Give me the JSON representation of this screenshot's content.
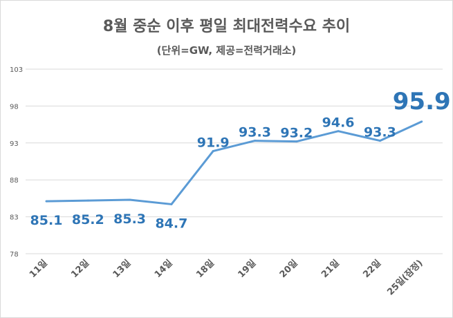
{
  "chart_data": {
    "type": "line",
    "title": "8월 중순 이후 평일 최대전력수요 추이",
    "subtitle": "(단위=GW, 제공=전력거래소)",
    "categories": [
      "11일",
      "12일",
      "13일",
      "14일",
      "18일",
      "19일",
      "20일",
      "21일",
      "22일",
      "25일(잠정)"
    ],
    "series": [
      {
        "name": "최대전력수요",
        "values": [
          85.1,
          85.2,
          85.3,
          84.7,
          91.9,
          93.3,
          93.2,
          94.6,
          93.3,
          95.9
        ]
      }
    ],
    "data_labels": [
      "85.1",
      "85.2",
      "85.3",
      "84.7",
      "91.9",
      "93.3",
      "93.2",
      "94.6",
      "93.3",
      "95.9"
    ],
    "yticks": [
      78,
      83,
      88,
      93,
      98,
      103
    ],
    "ylim": [
      78,
      103
    ],
    "xlabel": "",
    "ylabel": "",
    "grid": true,
    "colors": {
      "line": "#5b9bd5",
      "label": "#2e75b6",
      "grid": "#d9d9d9",
      "axis_text": "#595959"
    }
  }
}
